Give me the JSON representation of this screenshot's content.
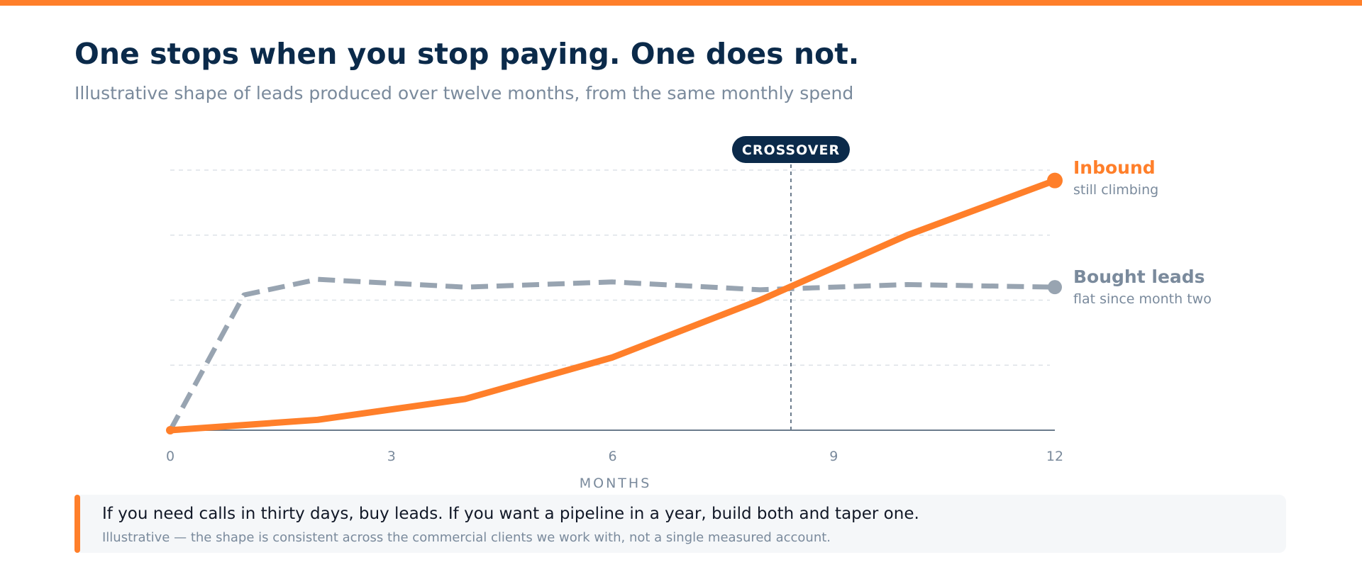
{
  "header": {
    "title": "One stops when you stop paying. One does not.",
    "subtitle": "Illustrative shape of leads produced over twelve months, from the same monthly spend"
  },
  "colors": {
    "accent": "#FF7F2A",
    "navy": "#0B2A4A",
    "gray_series": "#98A4B1",
    "muted_text": "#7A8A9C"
  },
  "chart_data": {
    "type": "line",
    "xlabel": "MONTHS",
    "ylabel": "",
    "xlim": [
      0,
      12
    ],
    "ylim": [
      0,
      100
    ],
    "xticks": [
      0,
      3,
      6,
      9,
      12
    ],
    "grid": true,
    "series": [
      {
        "name": "Inbound",
        "note": "still climbing",
        "style": "solid",
        "x": [
          0,
          2,
          4,
          6,
          8,
          10,
          12
        ],
        "y": [
          0,
          4,
          12,
          28,
          50,
          75,
          96
        ]
      },
      {
        "name": "Bought leads",
        "note": "flat since month two",
        "style": "dashed",
        "x": [
          0,
          1,
          2,
          4,
          6,
          8,
          10,
          12
        ],
        "y": [
          0,
          52,
          58,
          55,
          57,
          54,
          56,
          55
        ]
      }
    ],
    "annotations": [
      {
        "label": "CROSSOVER",
        "x": 8.42
      }
    ]
  },
  "callout": {
    "main": "If you need calls in thirty days, buy leads. If you want a pipeline in a year, build both and taper one.",
    "sub": "Illustrative — the shape is consistent across the commercial clients we work with, not a single measured account."
  }
}
